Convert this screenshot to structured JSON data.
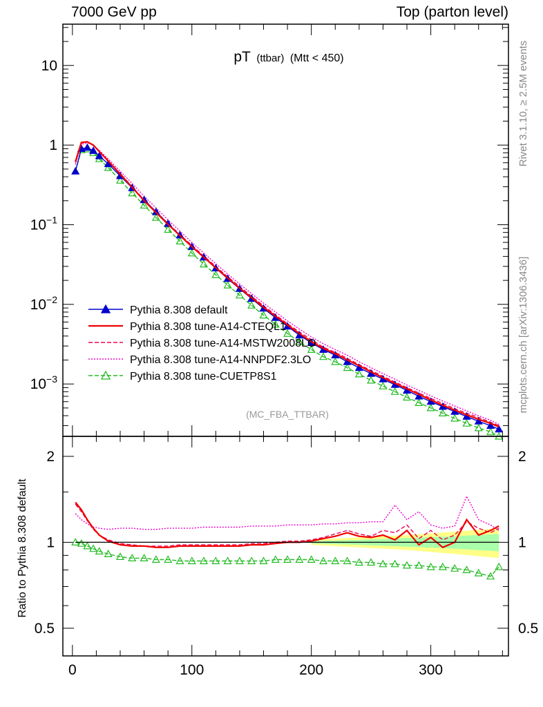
{
  "header": {
    "left": "7000 GeV pp",
    "right": "Top (parton level)"
  },
  "side_text": {
    "top": "Rivet 3.1.10, ≥ 2.5M events",
    "bottom": "mcplots.cern.ch [arXiv:1306.3436]"
  },
  "watermark": "(MC_FBA_TTBAR)",
  "title": {
    "main": "pT",
    "sub": "(ttbar)",
    "cut": "(Mtt < 450)"
  },
  "ratio_ylabel": "Ratio to Pythia 8.308 default",
  "colors": {
    "default": "#0000cc",
    "cteql1": "#ee0000",
    "mstw": "#ee0055",
    "nnpdf": "#ee00cc",
    "cuetp8s1": "#22bb22",
    "band_yellow": "#ffff88",
    "band_green": "#aaffaa"
  },
  "chart_data": [
    {
      "panel": "main",
      "type": "line",
      "xlabel": "",
      "ylabel": "",
      "xlim": [
        -8,
        365
      ],
      "ylim": [
        0.00022,
        33
      ],
      "yscale": "log",
      "yticks": [
        0.001,
        0.01,
        0.1,
        1,
        10
      ],
      "ytick_labels": [
        {
          "base": "10",
          "exp": "−3"
        },
        {
          "base": "10",
          "exp": "−2"
        },
        {
          "base": "10",
          "exp": "−1"
        },
        {
          "base": "1",
          "exp": ""
        },
        {
          "base": "10",
          "exp": ""
        }
      ],
      "legend_position": "lower-left",
      "x": [
        2.5,
        7.5,
        12.5,
        17.5,
        22.5,
        30,
        40,
        50,
        60,
        70,
        80,
        90,
        100,
        110,
        120,
        130,
        140,
        150,
        160,
        170,
        180,
        190,
        200,
        210,
        220,
        230,
        240,
        250,
        260,
        270,
        280,
        290,
        300,
        310,
        320,
        330,
        340,
        350,
        357
      ],
      "series": [
        {
          "name": "Pythia 8.308 default",
          "key": "default",
          "style": "solid",
          "marker": "filled-triangle",
          "values": [
            0.47,
            0.9,
            0.93,
            0.85,
            0.73,
            0.58,
            0.41,
            0.29,
            0.205,
            0.145,
            0.103,
            0.074,
            0.053,
            0.039,
            0.0285,
            0.021,
            0.0157,
            0.0118,
            0.0089,
            0.0068,
            0.0053,
            0.0041,
            0.0033,
            0.0027,
            0.0023,
            0.0019,
            0.0016,
            0.00135,
            0.00115,
            0.00098,
            0.00083,
            0.0007,
            0.0006,
            0.00052,
            0.00045,
            0.00039,
            0.00034,
            0.0003,
            0.00027
          ]
        },
        {
          "name": "Pythia 8.308 tune-A14-CTEQL1",
          "key": "cteql1",
          "style": "solid",
          "marker": "none",
          "values": [
            0.62,
            1.08,
            1.1,
            1.0,
            0.83,
            0.63,
            0.43,
            0.295,
            0.2,
            0.142,
            0.101,
            0.073,
            0.053,
            0.039,
            0.0288,
            0.0214,
            0.016,
            0.0121,
            0.0092,
            0.0071,
            0.0055,
            0.0043,
            0.0034,
            0.0028,
            0.0024,
            0.002,
            0.0017,
            0.00142,
            0.0012,
            0.00102,
            0.00087,
            0.00074,
            0.00063,
            0.00054,
            0.00047,
            0.00041,
            0.00036,
            0.00032,
            0.00029
          ]
        },
        {
          "name": "Pythia 8.308 tune-A14-MSTW2008LO",
          "key": "mstw",
          "style": "dashed",
          "marker": "none",
          "values": [
            0.6,
            1.06,
            1.09,
            0.99,
            0.83,
            0.64,
            0.44,
            0.3,
            0.205,
            0.146,
            0.104,
            0.075,
            0.055,
            0.0405,
            0.03,
            0.0222,
            0.0167,
            0.0126,
            0.0096,
            0.0074,
            0.0057,
            0.0045,
            0.0036,
            0.0029,
            0.0025,
            0.0021,
            0.00175,
            0.00148,
            0.00125,
            0.00106,
            0.0009,
            0.00077,
            0.00066,
            0.00057,
            0.00049,
            0.00043,
            0.00038,
            0.00033,
            0.0003
          ]
        },
        {
          "name": "Pythia 8.308 tune-A14-NNPDF2.3LO",
          "key": "nnpdf",
          "style": "dotted",
          "marker": "none",
          "values": [
            0.57,
            1.02,
            1.07,
            1.0,
            0.86,
            0.67,
            0.47,
            0.33,
            0.228,
            0.162,
            0.115,
            0.083,
            0.06,
            0.044,
            0.0325,
            0.024,
            0.018,
            0.0136,
            0.0104,
            0.008,
            0.0062,
            0.0049,
            0.0039,
            0.0032,
            0.0027,
            0.0023,
            0.0019,
            0.0016,
            0.00135,
            0.00115,
            0.00097,
            0.00083,
            0.00071,
            0.00061,
            0.00053,
            0.00046,
            0.0004,
            0.00035,
            0.00031
          ]
        },
        {
          "name": "Pythia 8.308 tune-CUETP8S1",
          "key": "cuetp8s1",
          "style": "dashed",
          "marker": "open-triangle",
          "values": [
            0.47,
            0.87,
            0.89,
            0.8,
            0.67,
            0.52,
            0.36,
            0.25,
            0.175,
            0.123,
            0.087,
            0.062,
            0.044,
            0.032,
            0.0235,
            0.0174,
            0.013,
            0.0097,
            0.0073,
            0.0056,
            0.0043,
            0.0034,
            0.0027,
            0.0022,
            0.0019,
            0.0016,
            0.00133,
            0.00111,
            0.00094,
            0.0008,
            0.00068,
            0.00058,
            0.0005,
            0.00043,
            0.00037,
            0.00032,
            0.00028,
            0.00025,
            0.00022
          ]
        }
      ]
    },
    {
      "panel": "ratio",
      "type": "line",
      "xlabel": "",
      "ylabel": "Ratio to Pythia 8.308 default",
      "xlim": [
        -8,
        365
      ],
      "ylim": [
        0.4,
        2.35
      ],
      "yscale": "log",
      "yticks": [
        0.5,
        1,
        2
      ],
      "ytick_labels": [
        "0.5",
        "1",
        "2"
      ],
      "xticks": [
        0,
        100,
        200,
        300
      ],
      "xtick_labels": [
        "0",
        "100",
        "200",
        "300"
      ],
      "x": [
        2.5,
        7.5,
        12.5,
        17.5,
        22.5,
        30,
        40,
        50,
        60,
        70,
        80,
        90,
        100,
        110,
        120,
        130,
        140,
        150,
        160,
        170,
        180,
        190,
        200,
        210,
        220,
        230,
        240,
        250,
        260,
        270,
        280,
        290,
        300,
        310,
        320,
        330,
        340,
        350,
        357
      ],
      "band": {
        "x": [
          200,
          240,
          280,
          320,
          357
        ],
        "yellow_half_width": [
          0.02,
          0.04,
          0.06,
          0.09,
          0.12
        ],
        "green_half_width": [
          0.01,
          0.02,
          0.035,
          0.05,
          0.07
        ]
      },
      "series": [
        {
          "name": "Pythia 8.308 default",
          "key": "default",
          "values": [
            1,
            1,
            1,
            1,
            1,
            1,
            1,
            1,
            1,
            1,
            1,
            1,
            1,
            1,
            1,
            1,
            1,
            1,
            1,
            1,
            1,
            1,
            1,
            1,
            1,
            1,
            1,
            1,
            1,
            1,
            1,
            1,
            1,
            1,
            1,
            1,
            1,
            1,
            1
          ]
        },
        {
          "name": "Pythia 8.308 tune-A14-CTEQL1",
          "key": "cteql1",
          "values": [
            1.38,
            1.3,
            1.2,
            1.12,
            1.06,
            1.01,
            0.98,
            0.97,
            0.97,
            0.96,
            0.96,
            0.97,
            0.97,
            0.97,
            0.97,
            0.97,
            0.97,
            0.98,
            0.98,
            0.99,
            1.0,
            1.0,
            1.01,
            1.03,
            1.05,
            1.08,
            1.05,
            1.04,
            1.06,
            1.02,
            1.1,
            0.98,
            1.04,
            0.96,
            1.0,
            1.2,
            1.06,
            1.1,
            1.14
          ]
        },
        {
          "name": "Pythia 8.308 tune-A14-MSTW2008LO",
          "key": "mstw",
          "values": [
            1.36,
            1.28,
            1.19,
            1.11,
            1.06,
            1.02,
            0.99,
            0.98,
            0.97,
            0.97,
            0.97,
            0.98,
            0.98,
            0.98,
            0.98,
            0.98,
            0.98,
            0.99,
            0.99,
            1.0,
            1.01,
            1.01,
            1.02,
            1.04,
            1.07,
            1.1,
            1.07,
            1.05,
            1.1,
            1.08,
            1.15,
            1.03,
            1.1,
            1.02,
            1.06,
            1.18,
            1.12,
            1.08,
            1.12
          ]
        },
        {
          "name": "Pythia 8.308 tune-A14-NNPDF2.3LO",
          "key": "nnpdf",
          "values": [
            1.26,
            1.2,
            1.16,
            1.13,
            1.12,
            1.11,
            1.12,
            1.12,
            1.11,
            1.11,
            1.12,
            1.12,
            1.12,
            1.13,
            1.13,
            1.13,
            1.13,
            1.14,
            1.14,
            1.14,
            1.15,
            1.15,
            1.15,
            1.16,
            1.16,
            1.17,
            1.17,
            1.18,
            1.18,
            1.35,
            1.2,
            1.28,
            1.15,
            1.12,
            1.14,
            1.45,
            1.2,
            1.15,
            1.1
          ]
        },
        {
          "name": "Pythia 8.308 tune-CUETP8S1",
          "key": "cuetp8s1",
          "values": [
            1.0,
            0.99,
            0.97,
            0.95,
            0.93,
            0.91,
            0.89,
            0.88,
            0.88,
            0.87,
            0.87,
            0.86,
            0.86,
            0.86,
            0.86,
            0.86,
            0.86,
            0.86,
            0.86,
            0.87,
            0.87,
            0.87,
            0.87,
            0.86,
            0.86,
            0.86,
            0.85,
            0.85,
            0.84,
            0.84,
            0.83,
            0.83,
            0.82,
            0.82,
            0.81,
            0.8,
            0.78,
            0.76,
            0.82
          ]
        }
      ]
    }
  ]
}
